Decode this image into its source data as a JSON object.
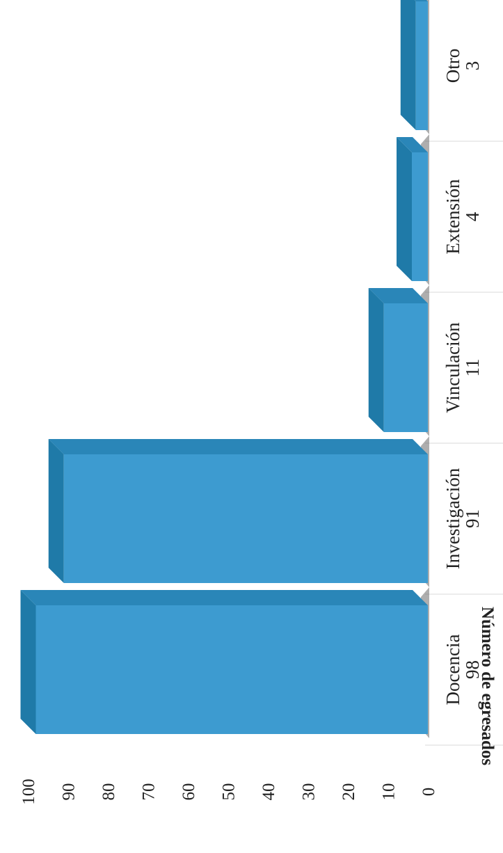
{
  "chart_data": {
    "type": "bar",
    "orientation": "horizontal",
    "rotated": true,
    "title": "",
    "categories": [
      "Docencia",
      "Investigación",
      "Vinculación",
      "Extensión",
      "Otro"
    ],
    "values": [
      98,
      91,
      11,
      4,
      3
    ],
    "data_labels": [
      "98",
      "91",
      "11",
      "4",
      "3"
    ],
    "ylabel": "Número de egresados",
    "xlabel": "",
    "ylim": [
      0,
      100
    ],
    "yticks": [
      "0",
      "10",
      "20",
      "30",
      "40",
      "50",
      "60",
      "70",
      "80",
      "90",
      "100"
    ],
    "grid": false,
    "legend": "none",
    "colors": {
      "bar_front": "#3d9bd0",
      "bar_top": "#1f7aa8",
      "bar_side": "#2a86b8",
      "shadow": "#6b6b6b"
    }
  }
}
